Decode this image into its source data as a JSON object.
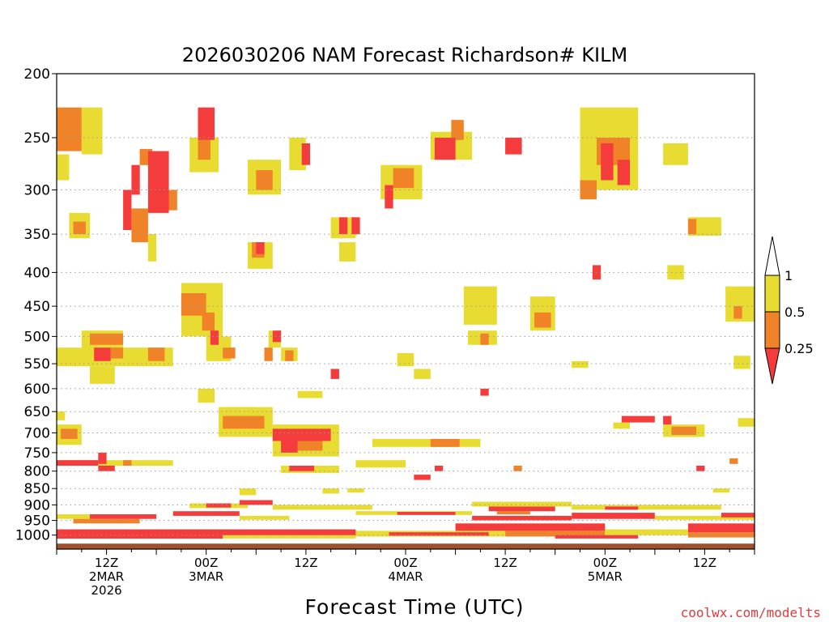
{
  "chart_data": {
    "type": "heatmap",
    "title": "2026030206 NAM Forecast Richardson# KILM",
    "xlabel": "Forecast Time (UTC)",
    "ylabel": "",
    "credit": "coolwx.com/modelts",
    "x_unit": "forecast hour",
    "xlim": [
      0,
      84
    ],
    "x_ticks": [
      {
        "hour": 6,
        "label": "12Z",
        "date": "2MAR",
        "year": "2026"
      },
      {
        "hour": 18,
        "label": "00Z",
        "date": "3MAR",
        "year": ""
      },
      {
        "hour": 30,
        "label": "12Z",
        "date": "",
        "year": ""
      },
      {
        "hour": 42,
        "label": "00Z",
        "date": "4MAR",
        "year": ""
      },
      {
        "hour": 54,
        "label": "12Z",
        "date": "",
        "year": ""
      },
      {
        "hour": 66,
        "label": "00Z",
        "date": "5MAR",
        "year": ""
      },
      {
        "hour": 78,
        "label": "12Z",
        "date": "",
        "year": ""
      }
    ],
    "y_unit": "hPa",
    "ylim": [
      200,
      1050
    ],
    "y_ticks": [
      "200",
      "250",
      "300",
      "350",
      "400",
      "450",
      "500",
      "550",
      "600",
      "650",
      "700",
      "750",
      "800",
      "850",
      "900",
      "950",
      "1000"
    ],
    "legend": {
      "placement": "right",
      "boundaries": [
        "1",
        "0.5",
        "0.25"
      ],
      "bins": [
        {
          "range": "0.5-1",
          "color": "#e8dc32"
        },
        {
          "range": "0.25-0.5",
          "color": "#f08228"
        },
        {
          "range": "<0.25",
          "color": "#f53c3c"
        }
      ]
    },
    "colors": {
      "low": "#f53c3c",
      "mid": "#f08228",
      "high": "#e8dc32",
      "ground": "#a0522d"
    },
    "cells": [
      {
        "h0": 0,
        "h1": 3,
        "p0": 225,
        "p1": 262,
        "c": "mid"
      },
      {
        "h0": 3,
        "h1": 5.5,
        "p0": 225,
        "p1": 265,
        "c": "high"
      },
      {
        "h0": 0,
        "h1": 1.5,
        "p0": 265,
        "p1": 290,
        "c": "high"
      },
      {
        "h0": 9,
        "h1": 10,
        "p0": 275,
        "p1": 305,
        "c": "low"
      },
      {
        "h0": 10,
        "h1": 11.5,
        "p0": 260,
        "p1": 275,
        "c": "mid"
      },
      {
        "h0": 11,
        "h1": 13.5,
        "p0": 262,
        "p1": 325,
        "c": "low"
      },
      {
        "h0": 13.5,
        "h1": 14.5,
        "p0": 300,
        "p1": 322,
        "c": "mid"
      },
      {
        "h0": 8,
        "h1": 9,
        "p0": 300,
        "p1": 345,
        "c": "low"
      },
      {
        "h0": 9,
        "h1": 11,
        "p0": 320,
        "p1": 360,
        "c": "mid"
      },
      {
        "h0": 11,
        "h1": 12,
        "p0": 350,
        "p1": 385,
        "c": "high"
      },
      {
        "h0": 1.5,
        "h1": 4,
        "p0": 325,
        "p1": 355,
        "c": "high"
      },
      {
        "h0": 2,
        "h1": 3.5,
        "p0": 335,
        "p1": 350,
        "c": "mid"
      },
      {
        "h0": 16,
        "h1": 19.5,
        "p0": 250,
        "p1": 282,
        "c": "high"
      },
      {
        "h0": 17,
        "h1": 18.5,
        "p0": 252,
        "p1": 270,
        "c": "mid"
      },
      {
        "h0": 17,
        "h1": 19,
        "p0": 225,
        "p1": 252,
        "c": "low"
      },
      {
        "h0": 24,
        "h1": 26,
        "p0": 280,
        "p1": 300,
        "c": "mid"
      },
      {
        "h0": 23,
        "h1": 27,
        "p0": 270,
        "p1": 305,
        "c": "high"
      },
      {
        "h0": 28,
        "h1": 30,
        "p0": 250,
        "p1": 280,
        "c": "high"
      },
      {
        "h0": 29.5,
        "h1": 30.5,
        "p0": 255,
        "p1": 275,
        "c": "low"
      },
      {
        "h0": 39,
        "h1": 44,
        "p0": 275,
        "p1": 310,
        "c": "high"
      },
      {
        "h0": 40.5,
        "h1": 43,
        "p0": 278,
        "p1": 298,
        "c": "mid"
      },
      {
        "h0": 39.5,
        "h1": 40.5,
        "p0": 295,
        "p1": 320,
        "c": "low"
      },
      {
        "h0": 45,
        "h1": 50,
        "p0": 245,
        "p1": 270,
        "c": "high"
      },
      {
        "h0": 45.5,
        "h1": 48,
        "p0": 250,
        "p1": 270,
        "c": "low"
      },
      {
        "h0": 47.5,
        "h1": 49,
        "p0": 235,
        "p1": 252,
        "c": "mid"
      },
      {
        "h0": 54,
        "h1": 56,
        "p0": 250,
        "p1": 265,
        "c": "low"
      },
      {
        "h0": 63,
        "h1": 70,
        "p0": 225,
        "p1": 300,
        "c": "high"
      },
      {
        "h0": 65,
        "h1": 69,
        "p0": 250,
        "p1": 275,
        "c": "mid"
      },
      {
        "h0": 65.5,
        "h1": 67,
        "p0": 255,
        "p1": 290,
        "c": "low"
      },
      {
        "h0": 67,
        "h1": 69,
        "p0": 250,
        "p1": 265,
        "c": "mid"
      },
      {
        "h0": 67.5,
        "h1": 69,
        "p0": 270,
        "p1": 295,
        "c": "low"
      },
      {
        "h0": 63,
        "h1": 65,
        "p0": 290,
        "p1": 310,
        "c": "mid"
      },
      {
        "h0": 73,
        "h1": 76,
        "p0": 255,
        "p1": 275,
        "c": "high"
      },
      {
        "h0": 76,
        "h1": 80,
        "p0": 330,
        "p1": 352,
        "c": "high"
      },
      {
        "h0": 76,
        "h1": 77,
        "p0": 332,
        "p1": 350,
        "c": "mid"
      },
      {
        "h0": 23,
        "h1": 26,
        "p0": 360,
        "p1": 395,
        "c": "high"
      },
      {
        "h0": 23.5,
        "h1": 25,
        "p0": 360,
        "p1": 380,
        "c": "mid"
      },
      {
        "h0": 24,
        "h1": 25,
        "p0": 360,
        "p1": 375,
        "c": "low"
      },
      {
        "h0": 33,
        "h1": 36,
        "p0": 330,
        "p1": 355,
        "c": "high"
      },
      {
        "h0": 34,
        "h1": 35,
        "p0": 330,
        "p1": 350,
        "c": "low"
      },
      {
        "h0": 35.5,
        "h1": 36.5,
        "p0": 330,
        "p1": 350,
        "c": "low"
      },
      {
        "h0": 34,
        "h1": 36,
        "p0": 360,
        "p1": 385,
        "c": "high"
      },
      {
        "h0": 15,
        "h1": 18,
        "p0": 430,
        "p1": 465,
        "c": "mid"
      },
      {
        "h0": 17.5,
        "h1": 19,
        "p0": 460,
        "p1": 490,
        "c": "mid"
      },
      {
        "h0": 15,
        "h1": 20,
        "p0": 415,
        "p1": 500,
        "c": "high"
      },
      {
        "h0": 18.5,
        "h1": 19.5,
        "p0": 490,
        "p1": 515,
        "c": "low"
      },
      {
        "h0": 18,
        "h1": 21,
        "p0": 500,
        "p1": 545,
        "c": "high"
      },
      {
        "h0": 20,
        "h1": 21.5,
        "p0": 520,
        "p1": 540,
        "c": "mid"
      },
      {
        "h0": 25.5,
        "h1": 27,
        "p0": 490,
        "p1": 520,
        "c": "high"
      },
      {
        "h0": 26,
        "h1": 27,
        "p0": 490,
        "p1": 510,
        "c": "low"
      },
      {
        "h0": 25,
        "h1": 26,
        "p0": 520,
        "p1": 545,
        "c": "mid"
      },
      {
        "h0": 27,
        "h1": 29,
        "p0": 520,
        "p1": 545,
        "c": "high"
      },
      {
        "h0": 27.5,
        "h1": 28.5,
        "p0": 525,
        "p1": 545,
        "c": "mid"
      },
      {
        "h0": 0,
        "h1": 14,
        "p0": 520,
        "p1": 555,
        "c": "high"
      },
      {
        "h0": 3,
        "h1": 8,
        "p0": 490,
        "p1": 525,
        "c": "high"
      },
      {
        "h0": 4,
        "h1": 8,
        "p0": 495,
        "p1": 515,
        "c": "mid"
      },
      {
        "h0": 4.5,
        "h1": 6.5,
        "p0": 520,
        "p1": 545,
        "c": "low"
      },
      {
        "h0": 6.5,
        "h1": 8,
        "p0": 520,
        "p1": 540,
        "c": "mid"
      },
      {
        "h0": 11,
        "h1": 13,
        "p0": 520,
        "p1": 545,
        "c": "mid"
      },
      {
        "h0": 4,
        "h1": 7,
        "p0": 555,
        "p1": 590,
        "c": "high"
      },
      {
        "h0": 49,
        "h1": 53,
        "p0": 420,
        "p1": 480,
        "c": "high"
      },
      {
        "h0": 49.5,
        "h1": 53,
        "p0": 490,
        "p1": 515,
        "c": "high"
      },
      {
        "h0": 51,
        "h1": 52,
        "p0": 495,
        "p1": 515,
        "c": "mid"
      },
      {
        "h0": 57,
        "h1": 60,
        "p0": 435,
        "p1": 490,
        "c": "high"
      },
      {
        "h0": 57.5,
        "h1": 59.5,
        "p0": 460,
        "p1": 485,
        "c": "mid"
      },
      {
        "h0": 80.5,
        "h1": 84,
        "p0": 420,
        "p1": 475,
        "c": "high"
      },
      {
        "h0": 81.5,
        "h1": 82.5,
        "p0": 450,
        "p1": 470,
        "c": "mid"
      },
      {
        "h0": 64.5,
        "h1": 65.5,
        "p0": 390,
        "p1": 410,
        "c": "low"
      },
      {
        "h0": 73.5,
        "h1": 75.5,
        "p0": 390,
        "p1": 410,
        "c": "high"
      },
      {
        "h0": 41,
        "h1": 43,
        "p0": 530,
        "p1": 555,
        "c": "high"
      },
      {
        "h0": 43,
        "h1": 45,
        "p0": 560,
        "p1": 580,
        "c": "high"
      },
      {
        "h0": 33,
        "h1": 34,
        "p0": 560,
        "p1": 580,
        "c": "low"
      },
      {
        "h0": 51,
        "h1": 52,
        "p0": 600,
        "p1": 615,
        "c": "low"
      },
      {
        "h0": 62,
        "h1": 64,
        "p0": 545,
        "p1": 558,
        "c": "high"
      },
      {
        "h0": 81.5,
        "h1": 83.5,
        "p0": 535,
        "p1": 560,
        "c": "high"
      },
      {
        "h0": 17,
        "h1": 19,
        "p0": 600,
        "p1": 630,
        "c": "high"
      },
      {
        "h0": 20,
        "h1": 24,
        "p0": 640,
        "p1": 665,
        "c": "high"
      },
      {
        "h0": 20,
        "h1": 25,
        "p0": 660,
        "p1": 690,
        "c": "mid"
      },
      {
        "h0": 19.5,
        "h1": 26,
        "p0": 640,
        "p1": 710,
        "c": "high"
      },
      {
        "h0": 26,
        "h1": 33,
        "p0": 690,
        "p1": 720,
        "c": "low"
      },
      {
        "h0": 27,
        "h1": 29,
        "p0": 715,
        "p1": 750,
        "c": "low"
      },
      {
        "h0": 29,
        "h1": 32,
        "p0": 720,
        "p1": 745,
        "c": "mid"
      },
      {
        "h0": 26,
        "h1": 34,
        "p0": 680,
        "p1": 760,
        "c": "high"
      },
      {
        "h0": 29,
        "h1": 32,
        "p0": 605,
        "p1": 620,
        "c": "high"
      },
      {
        "h0": 0.5,
        "h1": 2.5,
        "p0": 690,
        "p1": 715,
        "c": "mid"
      },
      {
        "h0": 0,
        "h1": 3,
        "p0": 680,
        "p1": 730,
        "c": "high"
      },
      {
        "h0": 0,
        "h1": 1,
        "p0": 650,
        "p1": 670,
        "c": "high"
      },
      {
        "h0": 0,
        "h1": 14,
        "p0": 770,
        "p1": 785,
        "c": "high"
      },
      {
        "h0": 0,
        "h1": 5,
        "p0": 770,
        "p1": 785,
        "c": "low"
      },
      {
        "h0": 5,
        "h1": 6,
        "p0": 750,
        "p1": 780,
        "c": "low"
      },
      {
        "h0": 5,
        "h1": 7,
        "p0": 785,
        "p1": 800,
        "c": "low"
      },
      {
        "h0": 8,
        "h1": 9,
        "p0": 770,
        "p1": 785,
        "c": "mid"
      },
      {
        "h0": 27,
        "h1": 34,
        "p0": 785,
        "p1": 805,
        "c": "high"
      },
      {
        "h0": 28,
        "h1": 31,
        "p0": 785,
        "p1": 800,
        "c": "low"
      },
      {
        "h0": 38,
        "h1": 51,
        "p0": 715,
        "p1": 735,
        "c": "high"
      },
      {
        "h0": 45,
        "h1": 48.5,
        "p0": 715,
        "p1": 735,
        "c": "mid"
      },
      {
        "h0": 36,
        "h1": 42,
        "p0": 770,
        "p1": 790,
        "c": "high"
      },
      {
        "h0": 45.5,
        "h1": 46.5,
        "p0": 785,
        "p1": 800,
        "c": "low"
      },
      {
        "h0": 43,
        "h1": 45,
        "p0": 810,
        "p1": 825,
        "c": "low"
      },
      {
        "h0": 68,
        "h1": 72,
        "p0": 660,
        "p1": 675,
        "c": "low"
      },
      {
        "h0": 67,
        "h1": 69,
        "p0": 675,
        "p1": 690,
        "c": "high"
      },
      {
        "h0": 73,
        "h1": 74,
        "p0": 660,
        "p1": 680,
        "c": "low"
      },
      {
        "h0": 73,
        "h1": 78,
        "p0": 680,
        "p1": 710,
        "c": "high"
      },
      {
        "h0": 74,
        "h1": 77,
        "p0": 685,
        "p1": 705,
        "c": "mid"
      },
      {
        "h0": 81,
        "h1": 82,
        "p0": 765,
        "p1": 780,
        "c": "mid"
      },
      {
        "h0": 82,
        "h1": 84,
        "p0": 665,
        "p1": 685,
        "c": "high"
      },
      {
        "h0": 55,
        "h1": 56,
        "p0": 785,
        "p1": 800,
        "c": "mid"
      },
      {
        "h0": 77,
        "h1": 78,
        "p0": 785,
        "p1": 800,
        "c": "low"
      },
      {
        "h0": 22,
        "h1": 24,
        "p0": 850,
        "p1": 870,
        "c": "high"
      },
      {
        "h0": 32,
        "h1": 34,
        "p0": 850,
        "p1": 865,
        "c": "high"
      },
      {
        "h0": 35,
        "h1": 37,
        "p0": 850,
        "p1": 862,
        "c": "high"
      },
      {
        "h0": 79,
        "h1": 81,
        "p0": 850,
        "p1": 862,
        "c": "high"
      },
      {
        "h0": 16,
        "h1": 23,
        "p0": 895,
        "p1": 910,
        "c": "high"
      },
      {
        "h0": 18,
        "h1": 21,
        "p0": 895,
        "p1": 908,
        "c": "low"
      },
      {
        "h0": 22,
        "h1": 26,
        "p0": 885,
        "p1": 900,
        "c": "low"
      },
      {
        "h0": 26,
        "h1": 38,
        "p0": 900,
        "p1": 915,
        "c": "high"
      },
      {
        "h0": 50,
        "h1": 62,
        "p0": 890,
        "p1": 905,
        "c": "high"
      },
      {
        "h0": 52,
        "h1": 60,
        "p0": 905,
        "p1": 920,
        "c": "low"
      },
      {
        "h0": 53,
        "h1": 57,
        "p0": 920,
        "p1": 930,
        "c": "mid"
      },
      {
        "h0": 62,
        "h1": 80,
        "p0": 900,
        "p1": 915,
        "c": "high"
      },
      {
        "h0": 66,
        "h1": 70,
        "p0": 905,
        "p1": 915,
        "c": "low"
      },
      {
        "h0": 0,
        "h1": 4,
        "p0": 930,
        "p1": 945,
        "c": "high"
      },
      {
        "h0": 4,
        "h1": 12,
        "p0": 930,
        "p1": 945,
        "c": "low"
      },
      {
        "h0": 2,
        "h1": 10,
        "p0": 945,
        "p1": 960,
        "c": "mid"
      },
      {
        "h0": 14,
        "h1": 22,
        "p0": 920,
        "p1": 935,
        "c": "low"
      },
      {
        "h0": 22,
        "h1": 28,
        "p0": 935,
        "p1": 948,
        "c": "high"
      },
      {
        "h0": 36,
        "h1": 50,
        "p0": 920,
        "p1": 932,
        "c": "high"
      },
      {
        "h0": 41,
        "h1": 48,
        "p0": 922,
        "p1": 932,
        "c": "low"
      },
      {
        "h0": 50,
        "h1": 62,
        "p0": 935,
        "p1": 950,
        "c": "low"
      },
      {
        "h0": 62,
        "h1": 72,
        "p0": 925,
        "p1": 945,
        "c": "low"
      },
      {
        "h0": 72,
        "h1": 84,
        "p0": 935,
        "p1": 948,
        "c": "high"
      },
      {
        "h0": 80,
        "h1": 84,
        "p0": 925,
        "p1": 940,
        "c": "low"
      },
      {
        "h0": 0,
        "h1": 36,
        "p0": 980,
        "p1": 1000,
        "c": "low"
      },
      {
        "h0": 0,
        "h1": 20,
        "p0": 995,
        "p1": 1012,
        "c": "low"
      },
      {
        "h0": 20,
        "h1": 36,
        "p0": 1000,
        "p1": 1012,
        "c": "high"
      },
      {
        "h0": 36,
        "h1": 54,
        "p0": 985,
        "p1": 1005,
        "c": "high"
      },
      {
        "h0": 40,
        "h1": 52,
        "p0": 990,
        "p1": 1002,
        "c": "low"
      },
      {
        "h0": 48,
        "h1": 66,
        "p0": 960,
        "p1": 985,
        "c": "low"
      },
      {
        "h0": 54,
        "h1": 66,
        "p0": 985,
        "p1": 1005,
        "c": "mid"
      },
      {
        "h0": 60,
        "h1": 70,
        "p0": 1000,
        "p1": 1012,
        "c": "low"
      },
      {
        "h0": 66,
        "h1": 76,
        "p0": 980,
        "p1": 1000,
        "c": "high"
      },
      {
        "h0": 76,
        "h1": 84,
        "p0": 960,
        "p1": 990,
        "c": "low"
      },
      {
        "h0": 76,
        "h1": 84,
        "p0": 990,
        "p1": 1008,
        "c": "mid"
      }
    ]
  }
}
